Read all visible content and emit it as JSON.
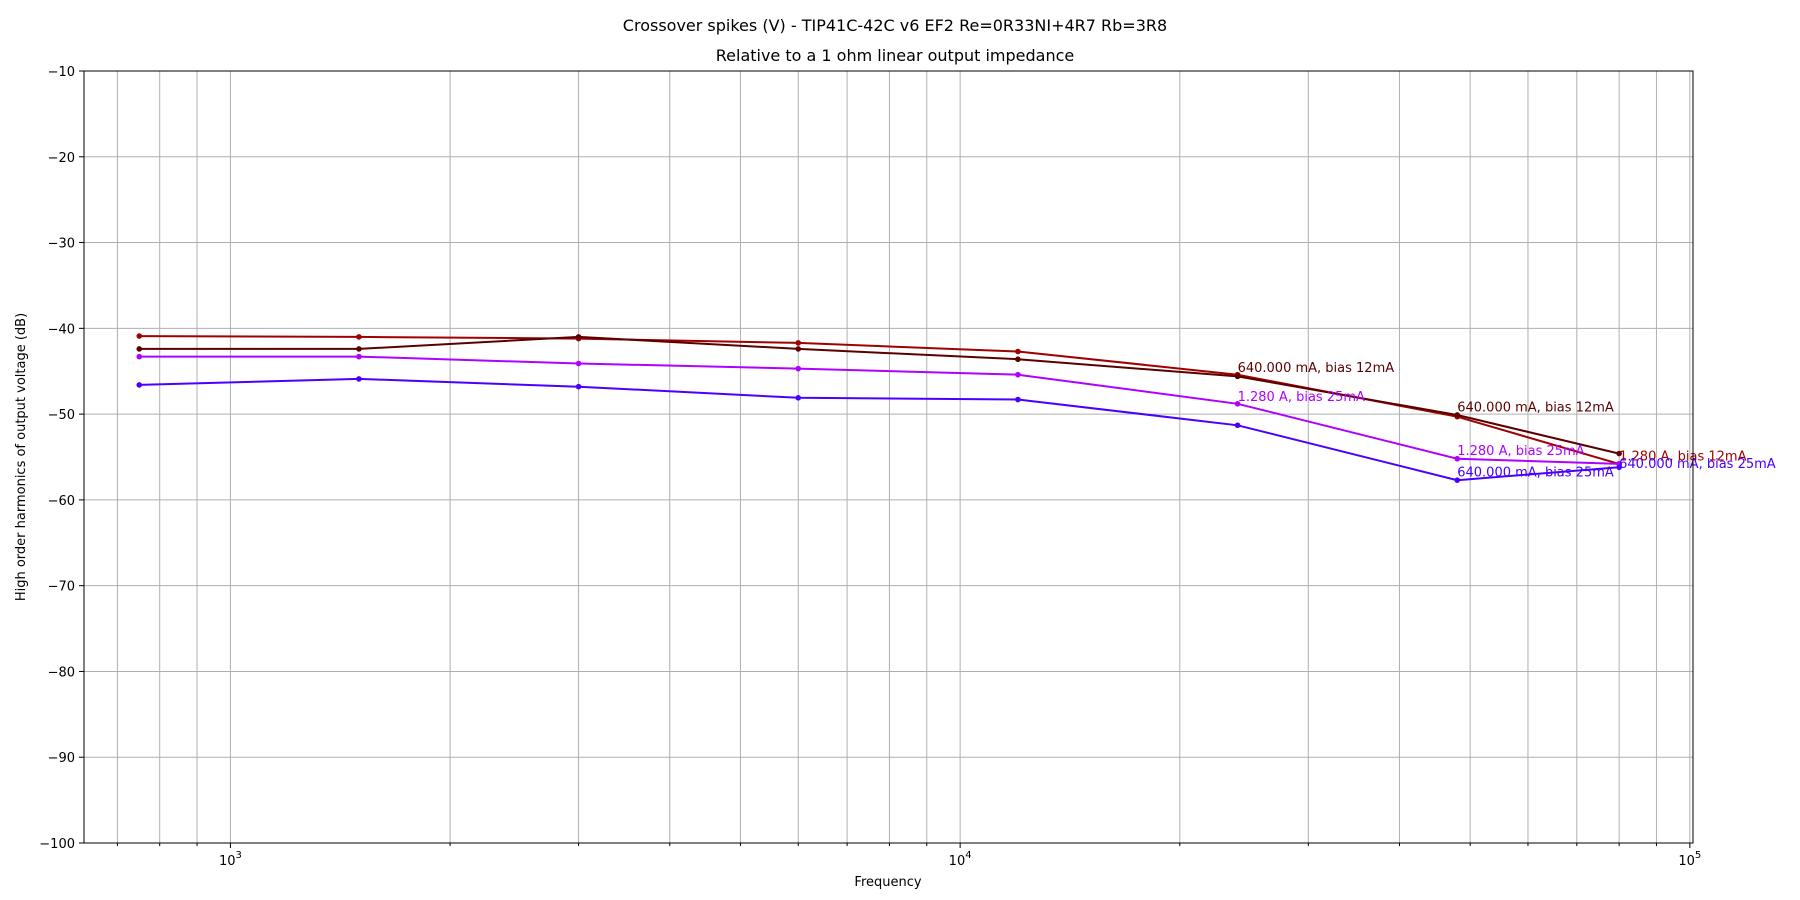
{
  "chart_data": {
    "type": "line",
    "title": "Crossover spikes (V) - TIP41C-42C v6 EF2 Re=0R33NI+4R7 Rb=3R8",
    "subtitle": "Relative to a 1 ohm linear output impedance",
    "xlabel": "Frequency",
    "ylabel": "High order harmonics of output voltage (dB)",
    "xscale": "log",
    "xlim": [
      630,
      101000
    ],
    "ylim": [
      -100,
      -10
    ],
    "grid": true,
    "x_ticks": [
      {
        "value": 1000,
        "label": "10^3"
      },
      {
        "value": 10000,
        "label": "10^4"
      },
      {
        "value": 100000,
        "label": "10^5"
      }
    ],
    "y_ticks": [
      {
        "value": -10,
        "label": "−10"
      },
      {
        "value": -20,
        "label": "−20"
      },
      {
        "value": -30,
        "label": "−30"
      },
      {
        "value": -40,
        "label": "−40"
      },
      {
        "value": -50,
        "label": "−50"
      },
      {
        "value": -60,
        "label": "−60"
      },
      {
        "value": -70,
        "label": "−70"
      },
      {
        "value": -80,
        "label": "−80"
      },
      {
        "value": -90,
        "label": "−90"
      },
      {
        "value": -100,
        "label": "−100"
      }
    ],
    "x": [
      750,
      1500,
      3000,
      6000,
      12000,
      24000,
      48000,
      80000
    ],
    "series": [
      {
        "color": "#a00000",
        "values": [
          -40.9,
          -41.0,
          -41.2,
          -41.7,
          -42.7,
          -45.4,
          -50.3,
          -55.8
        ]
      },
      {
        "color": "#5a0000",
        "values": [
          -42.4,
          -42.4,
          -41.0,
          -42.4,
          -43.6,
          -45.6,
          -50.1,
          -54.6
        ]
      },
      {
        "color": "#b000ff",
        "values": [
          -43.3,
          -43.3,
          -44.1,
          -44.7,
          -45.4,
          -48.8,
          -55.2,
          -55.8
        ]
      },
      {
        "color": "#4a00ff",
        "values": [
          -46.6,
          -45.9,
          -46.8,
          -48.1,
          -48.3,
          -51.3,
          -57.7,
          -56.2
        ]
      }
    ],
    "annotations": [
      {
        "text": "640.000 mA, bias 12mA",
        "x": 24000,
        "y": -45.2,
        "color": "#5a0000"
      },
      {
        "text": "1.280 A, bias 25mA",
        "x": 24000,
        "y": -48.6,
        "color": "#b000ff"
      },
      {
        "text": "640.000 mA, bias 12mA",
        "x": 48000,
        "y": -49.8,
        "color": "#5a0000"
      },
      {
        "text": "1.280 A, bias 25mA",
        "x": 48000,
        "y": -54.9,
        "color": "#b000ff"
      },
      {
        "text": "640.000 mA, bias 25mA",
        "x": 48000,
        "y": -57.4,
        "color": "#4a00ff"
      },
      {
        "text": "1.280 A, bias 12mA",
        "x": 80000,
        "y": -55.5,
        "color": "#a00000"
      },
      {
        "text": "640.000 mA, bias 25mA",
        "x": 80000,
        "y": -56.4,
        "color": "#4a00ff"
      }
    ]
  }
}
